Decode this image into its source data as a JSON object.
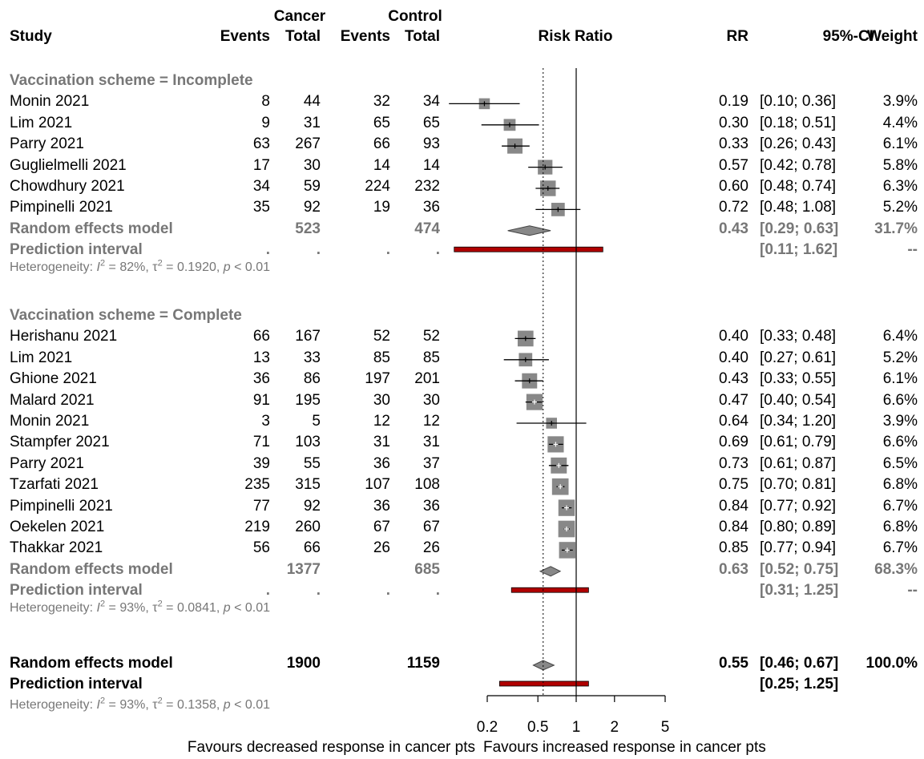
{
  "headers": {
    "study": "Study",
    "cancer_group": "Cancer",
    "control_group": "Control",
    "events": "Events",
    "total": "Total",
    "plot": "Risk Ratio",
    "rr": "RR",
    "ci": "95%-CI",
    "weight": "Weight"
  },
  "groups": [
    {
      "label": "Vaccination scheme = Incomplete",
      "studies": [
        {
          "study": "Monin 2021",
          "ev_c": "8",
          "tot_c": "44",
          "ev_k": "32",
          "tot_k": "34",
          "rr": "0.19",
          "ci": "[0.10; 0.36]",
          "w": "3.9%"
        },
        {
          "study": "Lim 2021",
          "ev_c": "9",
          "tot_c": "31",
          "ev_k": "65",
          "tot_k": "65",
          "rr": "0.30",
          "ci": "[0.18; 0.51]",
          "w": "4.4%"
        },
        {
          "study": "Parry 2021",
          "ev_c": "63",
          "tot_c": "267",
          "ev_k": "66",
          "tot_k": "93",
          "rr": "0.33",
          "ci": "[0.26; 0.43]",
          "w": "6.1%"
        },
        {
          "study": "Guglielmelli 2021",
          "ev_c": "17",
          "tot_c": "30",
          "ev_k": "14",
          "tot_k": "14",
          "rr": "0.57",
          "ci": "[0.42; 0.78]",
          "w": "5.8%"
        },
        {
          "study": "Chowdhury 2021",
          "ev_c": "34",
          "tot_c": "59",
          "ev_k": "224",
          "tot_k": "232",
          "rr": "0.60",
          "ci": "[0.48; 0.74]",
          "w": "6.3%"
        },
        {
          "study": "Pimpinelli 2021",
          "ev_c": "35",
          "tot_c": "92",
          "ev_k": "19",
          "tot_k": "36",
          "rr": "0.72",
          "ci": "[0.48; 1.08]",
          "w": "5.2%"
        }
      ],
      "model": {
        "label": "Random effects model",
        "tot_c": "523",
        "tot_k": "474",
        "rr": "0.43",
        "ci": "[0.29; 0.63]",
        "w": "31.7%"
      },
      "pi": {
        "label": "Prediction interval",
        "dots": ".",
        "ci": "[0.11; 1.62]",
        "w": "--"
      },
      "het": {
        "pre": "Heterogeneity: ",
        "i2_sym": "I",
        "sup2": "2",
        "i2_val": " = 82%, ",
        "tau_sym": "τ",
        "tau_val": " = 0.1920, ",
        "p_sym": "p",
        "p_val": " < 0.01"
      }
    },
    {
      "label": "Vaccination scheme = Complete",
      "studies": [
        {
          "study": "Herishanu 2021",
          "ev_c": "66",
          "tot_c": "167",
          "ev_k": "52",
          "tot_k": "52",
          "rr": "0.40",
          "ci": "[0.33; 0.48]",
          "w": "6.4%"
        },
        {
          "study": "Lim 2021",
          "ev_c": "13",
          "tot_c": "33",
          "ev_k": "85",
          "tot_k": "85",
          "rr": "0.40",
          "ci": "[0.27; 0.61]",
          "w": "5.2%"
        },
        {
          "study": "Ghione 2021",
          "ev_c": "36",
          "tot_c": "86",
          "ev_k": "197",
          "tot_k": "201",
          "rr": "0.43",
          "ci": "[0.33; 0.55]",
          "w": "6.1%"
        },
        {
          "study": "Malard 2021",
          "ev_c": "91",
          "tot_c": "195",
          "ev_k": "30",
          "tot_k": "30",
          "rr": "0.47",
          "ci": "[0.40; 0.54]",
          "w": "6.6%"
        },
        {
          "study": "Monin 2021",
          "ev_c": "3",
          "tot_c": "5",
          "ev_k": "12",
          "tot_k": "12",
          "rr": "0.64",
          "ci": "[0.34; 1.20]",
          "w": "3.9%"
        },
        {
          "study": "Stampfer 2021",
          "ev_c": "71",
          "tot_c": "103",
          "ev_k": "31",
          "tot_k": "31",
          "rr": "0.69",
          "ci": "[0.61; 0.79]",
          "w": "6.6%"
        },
        {
          "study": "Parry 2021",
          "ev_c": "39",
          "tot_c": "55",
          "ev_k": "36",
          "tot_k": "37",
          "rr": "0.73",
          "ci": "[0.61; 0.87]",
          "w": "6.5%"
        },
        {
          "study": "Tzarfati 2021",
          "ev_c": "235",
          "tot_c": "315",
          "ev_k": "107",
          "tot_k": "108",
          "rr": "0.75",
          "ci": "[0.70; 0.81]",
          "w": "6.8%"
        },
        {
          "study": "Pimpinelli 2021",
          "ev_c": "77",
          "tot_c": "92",
          "ev_k": "36",
          "tot_k": "36",
          "rr": "0.84",
          "ci": "[0.77; 0.92]",
          "w": "6.7%"
        },
        {
          "study": "Oekelen 2021",
          "ev_c": "219",
          "tot_c": "260",
          "ev_k": "67",
          "tot_k": "67",
          "rr": "0.84",
          "ci": "[0.80; 0.89]",
          "w": "6.8%"
        },
        {
          "study": "Thakkar 2021",
          "ev_c": "56",
          "tot_c": "66",
          "ev_k": "26",
          "tot_k": "26",
          "rr": "0.85",
          "ci": "[0.77; 0.94]",
          "w": "6.7%"
        }
      ],
      "model": {
        "label": "Random effects model",
        "tot_c": "1377",
        "tot_k": "685",
        "rr": "0.63",
        "ci": "[0.52; 0.75]",
        "w": "68.3%"
      },
      "pi": {
        "label": "Prediction interval",
        "dots": ".",
        "ci": "[0.31; 1.25]",
        "w": "--"
      },
      "het": {
        "pre": "Heterogeneity: ",
        "i2_sym": "I",
        "sup2": "2",
        "i2_val": " = 93%, ",
        "tau_sym": "τ",
        "tau_val": " = 0.0841, ",
        "p_sym": "p",
        "p_val": " < 0.01"
      }
    }
  ],
  "overall": {
    "model": {
      "label": "Random effects model",
      "tot_c": "1900",
      "tot_k": "1159",
      "rr": "0.55",
      "ci": "[0.46; 0.67]",
      "w": "100.0%"
    },
    "pi": {
      "label": "Prediction interval",
      "ci": "[0.25; 1.25]"
    },
    "het": {
      "pre": "Heterogeneity: ",
      "i2_sym": "I",
      "sup2": "2",
      "i2_val": " = 93%, ",
      "tau_sym": "τ",
      "tau_val": " = 0.1358, ",
      "p_sym": "p",
      "p_val": " < 0.01"
    }
  },
  "axis": {
    "favours_left": "Favours decreased response in cancer pts",
    "favours_right": "Favours increased response in cancer pts"
  },
  "chart_data": {
    "type": "forest",
    "x_scale": "log",
    "xlim": [
      0.1,
      5
    ],
    "ticks": [
      0.2,
      0.5,
      1,
      2,
      5
    ],
    "tick_labels": [
      "0.2",
      "0.5",
      "1",
      "2",
      "5"
    ],
    "reference_line": 1,
    "overall_effect_line": 0.55,
    "square_color": "#888888",
    "diamond_color": "#888888",
    "prediction_bar_color": "#b00000",
    "groups": [
      {
        "points": [
          {
            "rr": 0.19,
            "lo": 0.1,
            "hi": 0.36,
            "w": 3.9
          },
          {
            "rr": 0.3,
            "lo": 0.18,
            "hi": 0.51,
            "w": 4.4
          },
          {
            "rr": 0.33,
            "lo": 0.26,
            "hi": 0.43,
            "w": 6.1
          },
          {
            "rr": 0.57,
            "lo": 0.42,
            "hi": 0.78,
            "w": 5.8
          },
          {
            "rr": 0.6,
            "lo": 0.48,
            "hi": 0.74,
            "w": 6.3
          },
          {
            "rr": 0.72,
            "lo": 0.48,
            "hi": 1.08,
            "w": 5.2
          }
        ],
        "model": {
          "rr": 0.43,
          "lo": 0.29,
          "hi": 0.63
        },
        "pi": {
          "lo": 0.11,
          "hi": 1.62
        }
      },
      {
        "points": [
          {
            "rr": 0.4,
            "lo": 0.33,
            "hi": 0.48,
            "w": 6.4
          },
          {
            "rr": 0.4,
            "lo": 0.27,
            "hi": 0.61,
            "w": 5.2
          },
          {
            "rr": 0.43,
            "lo": 0.33,
            "hi": 0.55,
            "w": 6.1
          },
          {
            "rr": 0.47,
            "lo": 0.4,
            "hi": 0.54,
            "w": 6.6
          },
          {
            "rr": 0.64,
            "lo": 0.34,
            "hi": 1.2,
            "w": 3.9
          },
          {
            "rr": 0.69,
            "lo": 0.61,
            "hi": 0.79,
            "w": 6.6
          },
          {
            "rr": 0.73,
            "lo": 0.61,
            "hi": 0.87,
            "w": 6.5
          },
          {
            "rr": 0.75,
            "lo": 0.7,
            "hi": 0.81,
            "w": 6.8
          },
          {
            "rr": 0.84,
            "lo": 0.77,
            "hi": 0.92,
            "w": 6.7
          },
          {
            "rr": 0.84,
            "lo": 0.8,
            "hi": 0.89,
            "w": 6.8
          },
          {
            "rr": 0.85,
            "lo": 0.77,
            "hi": 0.94,
            "w": 6.7
          }
        ],
        "model": {
          "rr": 0.63,
          "lo": 0.52,
          "hi": 0.75
        },
        "pi": {
          "lo": 0.31,
          "hi": 1.25
        }
      }
    ],
    "overall": {
      "rr": 0.55,
      "lo": 0.46,
      "hi": 0.67,
      "pi_lo": 0.25,
      "pi_hi": 1.25
    }
  }
}
